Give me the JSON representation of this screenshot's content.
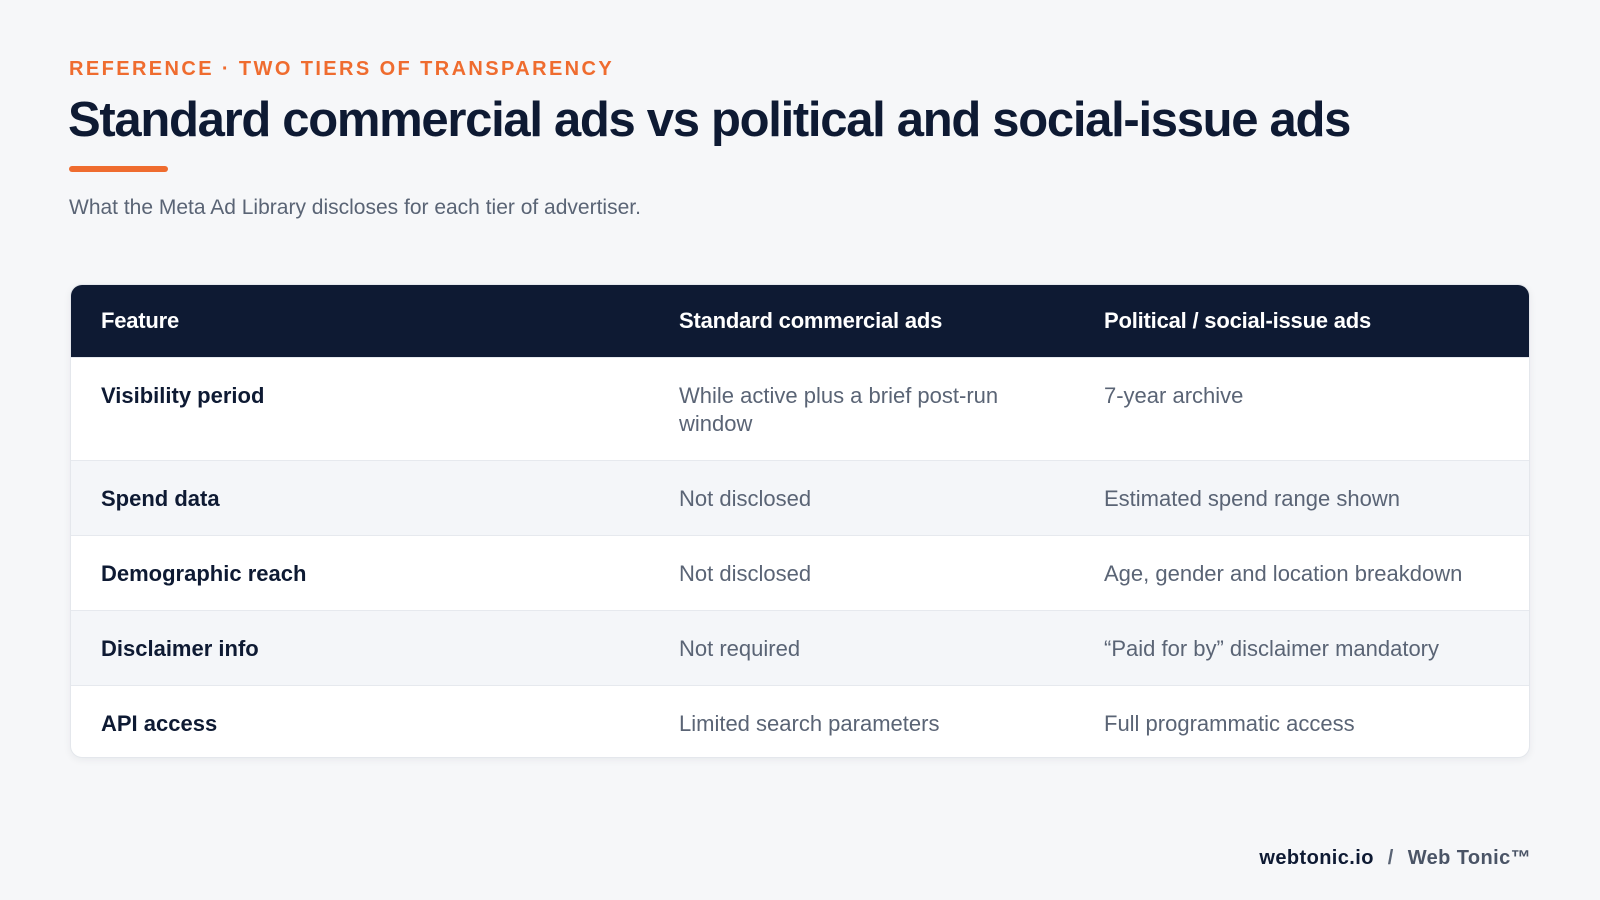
{
  "header": {
    "eyebrow": "REFERENCE · TWO TIERS OF TRANSPARENCY",
    "title": "Standard commercial ads vs political and social-issue ads",
    "subtitle": "What the Meta Ad Library discloses for each tier of advertiser."
  },
  "table": {
    "columns": [
      "Feature",
      "Standard commercial ads",
      "Political / social-issue ads"
    ],
    "rows": [
      {
        "feature": "Visibility period",
        "standard": "While active plus a brief post-run window",
        "political": "7-year archive"
      },
      {
        "feature": "Spend data",
        "standard": "Not disclosed",
        "political": "Estimated spend range shown"
      },
      {
        "feature": "Demographic reach",
        "standard": "Not disclosed",
        "political": "Age, gender and location breakdown"
      },
      {
        "feature": "Disclaimer info",
        "standard": "Not required",
        "political": "“Paid for by” disclaimer mandatory"
      },
      {
        "feature": "API access",
        "standard": "Limited search parameters",
        "political": "Full programmatic access"
      }
    ]
  },
  "footer": {
    "site": "webtonic.io",
    "separator": "/",
    "brand": "Web Tonic™"
  },
  "colors": {
    "accent": "#ef6c2f",
    "header_bg": "#0e1a33",
    "page_bg": "#f6f7f9"
  }
}
